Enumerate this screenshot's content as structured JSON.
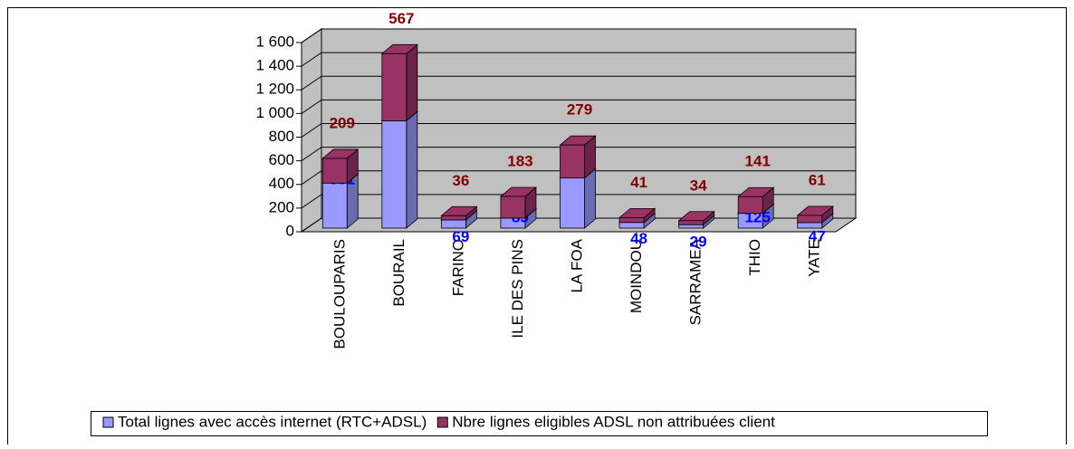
{
  "chart_data": {
    "type": "bar3d_stacked",
    "categories": [
      "BOULOUPARIS",
      "BOURAIL",
      "FARINO",
      "ILE DES PINS",
      "LA FOA",
      "MOINDOU",
      "SARRAMEA",
      "THIO",
      "YATE"
    ],
    "series": [
      {
        "name": "Total lignes avec accès internet (RTC+ADSL)",
        "color": "#9999ff",
        "label_color": "#0000ff",
        "values": [
          381,
          908,
          69,
          85,
          424,
          48,
          29,
          125,
          47
        ]
      },
      {
        "name": "Nbre lignes eligibles ADSL non attribuées client",
        "color": "#993366",
        "label_color": "#800000",
        "values": [
          209,
          567,
          36,
          183,
          279,
          41,
          34,
          141,
          61
        ]
      }
    ],
    "ylim": [
      0,
      1600
    ],
    "yticks": [
      0,
      200,
      400,
      600,
      800,
      {
        "value": 1000,
        "label": "1 000"
      },
      {
        "value": 1200,
        "label": "1 200"
      },
      {
        "value": 1400,
        "label": "1 400"
      },
      {
        "value": 1600,
        "label": "1 600"
      }
    ],
    "grid": true,
    "legend": "bottom"
  }
}
